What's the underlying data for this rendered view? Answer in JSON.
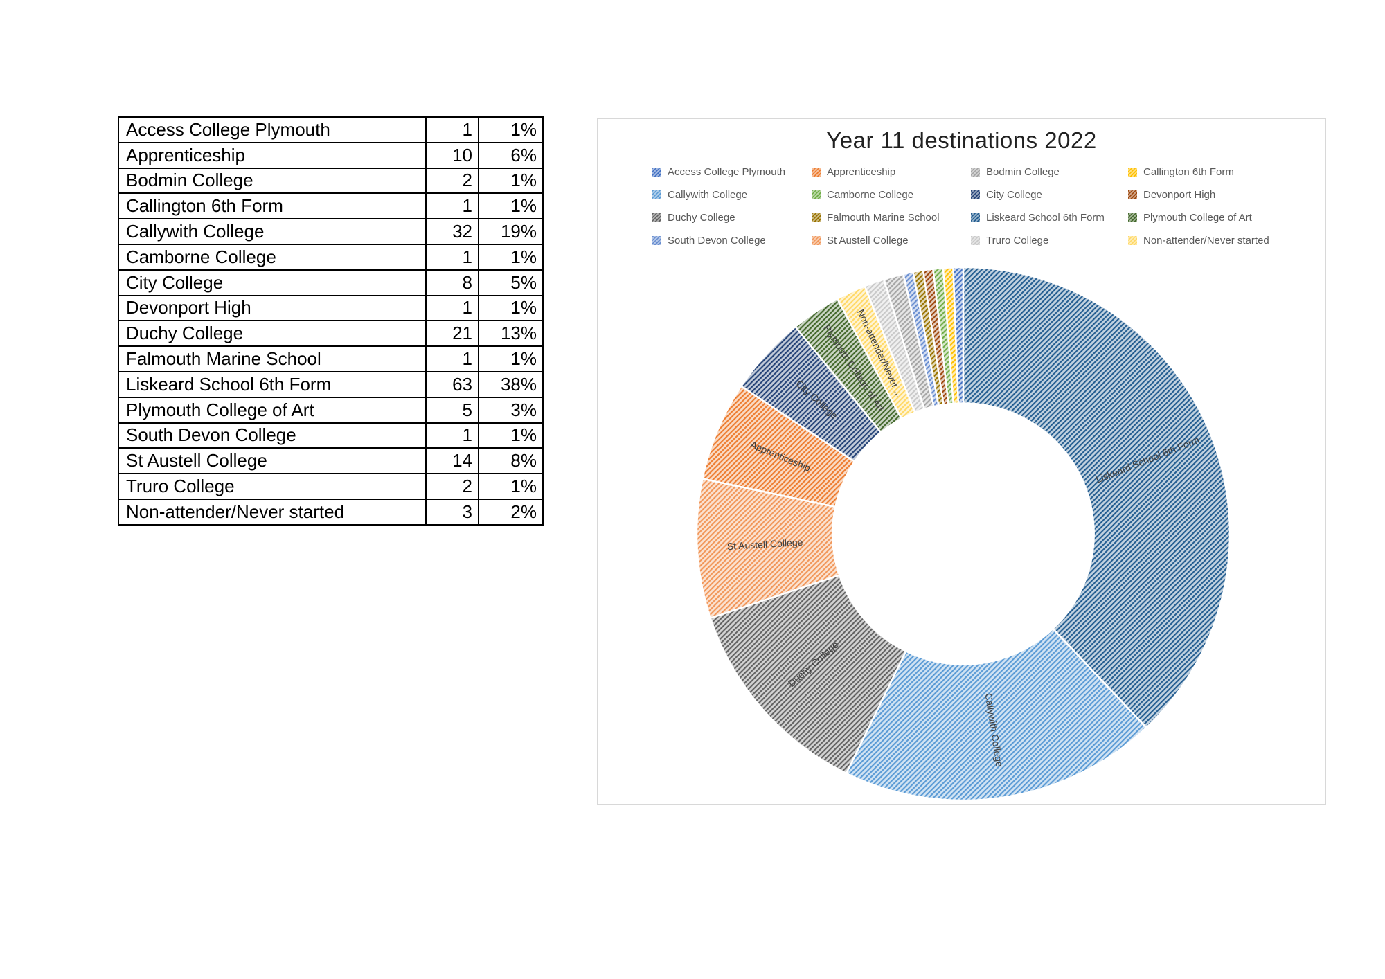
{
  "table": {
    "rows": [
      {
        "name": "Access College Plymouth",
        "count": "1",
        "pct": "1%"
      },
      {
        "name": "Apprenticeship",
        "count": "10",
        "pct": "6%"
      },
      {
        "name": "Bodmin College",
        "count": "2",
        "pct": "1%"
      },
      {
        "name": "Callington 6th Form",
        "count": "1",
        "pct": "1%"
      },
      {
        "name": "Callywith College",
        "count": "32",
        "pct": "19%"
      },
      {
        "name": "Camborne College",
        "count": "1",
        "pct": "1%"
      },
      {
        "name": "City College",
        "count": "8",
        "pct": "5%"
      },
      {
        "name": "Devonport High",
        "count": "1",
        "pct": "1%"
      },
      {
        "name": "Duchy College",
        "count": "21",
        "pct": "13%"
      },
      {
        "name": "Falmouth Marine School",
        "count": "1",
        "pct": "1%"
      },
      {
        "name": "Liskeard School 6th Form",
        "count": "63",
        "pct": "38%"
      },
      {
        "name": "Plymouth College of Art",
        "count": "5",
        "pct": "3%"
      },
      {
        "name": "South Devon College",
        "count": "1",
        "pct": "1%"
      },
      {
        "name": "St Austell College",
        "count": "14",
        "pct": "8%"
      },
      {
        "name": "Truro College",
        "count": "2",
        "pct": "1%"
      },
      {
        "name": "Non-attender/Never started",
        "count": "3",
        "pct": "2%"
      }
    ]
  },
  "chart": {
    "title": "Year 11 destinations 2022"
  },
  "chart_data": {
    "type": "pie",
    "subtype": "doughnut",
    "title": "Year 11 destinations 2022",
    "total": 166,
    "categories": [
      "Access College Plymouth",
      "Apprenticeship",
      "Bodmin College",
      "Callington 6th Form",
      "Callywith College",
      "Camborne College",
      "City College",
      "Devonport High",
      "Duchy College",
      "Falmouth Marine School",
      "Liskeard School 6th Form",
      "Plymouth College of Art",
      "South Devon College",
      "St Austell College",
      "Truro College",
      "Non-attender/Never started"
    ],
    "values": [
      1,
      10,
      2,
      1,
      32,
      1,
      8,
      1,
      21,
      1,
      63,
      5,
      1,
      14,
      2,
      3
    ],
    "percent_labels": [
      "1%",
      "6%",
      "1%",
      "1%",
      "19%",
      "1%",
      "5%",
      "1%",
      "13%",
      "1%",
      "38%",
      "3%",
      "1%",
      "8%",
      "1%",
      "2%"
    ],
    "colors": [
      "#4472C4",
      "#ED7D31",
      "#A5A5A5",
      "#FFC000",
      "#5B9BD5",
      "#70AD47",
      "#264478",
      "#9E480E",
      "#636363",
      "#997300",
      "#255E91",
      "#43682B",
      "#698ED0",
      "#F1975A",
      "#C9C9C9",
      "#FFD966"
    ],
    "fill_style": "diagonal-hatch-pattern",
    "legend_position": "top",
    "legend_columns": 4,
    "donut_hole_ratio": 0.49,
    "draw_rule": "clockwise from 12 o'clock, slices sorted by value descending (ties in reverse list order)",
    "wedge_labels": {
      "Liskeard School 6th Form": "Liskeard School 6th Form",
      "Callywith College": "Callywith College",
      "Duchy College": "Duchy College",
      "St Austell College": "St Austell College",
      "Apprenticeship": "Apprenticeship",
      "City College": "City College",
      "Plymouth College of Art": "Plymouth College of Art",
      "Non-attender/Never started": "Non-attender/Never ..."
    }
  }
}
